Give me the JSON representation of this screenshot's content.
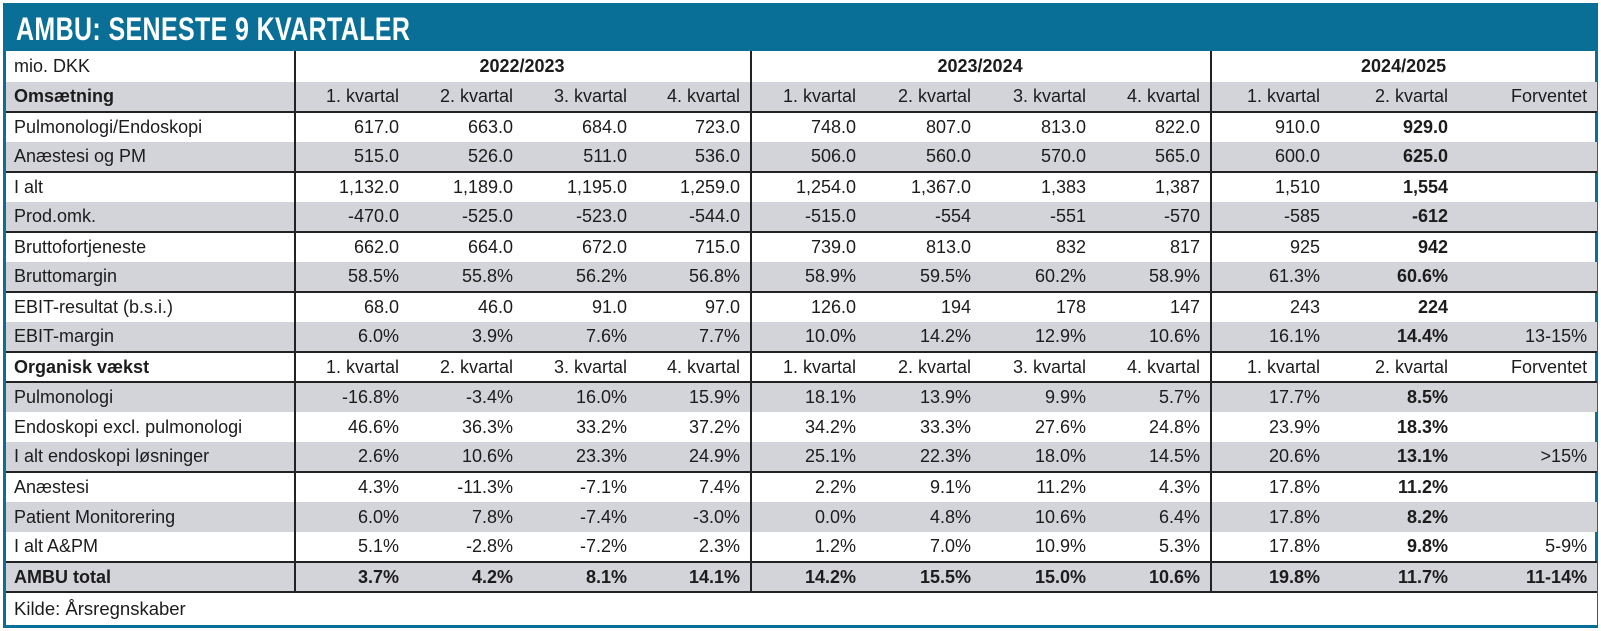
{
  "title": "AMBU: SENESTE 9 KVARTALER",
  "unit_label": "mio. DKK",
  "year_groups": [
    "2022/2023",
    "2023/2024",
    "2024/2025"
  ],
  "quarter_headers": [
    "1. kvartal",
    "2. kvartal",
    "3. kvartal",
    "4. kvartal",
    "1. kvartal",
    "2. kvartal",
    "3. kvartal",
    "4. kvartal",
    "1. kvartal",
    "2. kvartal",
    "Forventet"
  ],
  "sections": [
    {
      "name": "Omsætning",
      "rows": [
        {
          "label": "Pulmonologi/Endoskopi",
          "values": [
            "617.0",
            "663.0",
            "684.0",
            "723.0",
            "748.0",
            "807.0",
            "813.0",
            "822.0",
            "910.0",
            "929.0",
            ""
          ]
        },
        {
          "label": "Anæstesi og PM",
          "values": [
            "515.0",
            "526.0",
            "511.0",
            "536.0",
            "506.0",
            "560.0",
            "570.0",
            "565.0",
            "600.0",
            "625.0",
            ""
          ]
        },
        {
          "label": "I alt",
          "values": [
            "1,132.0",
            "1,189.0",
            "1,195.0",
            "1,259.0",
            "1,254.0",
            "1,367.0",
            "1,383",
            "1,387",
            "1,510",
            "1,554",
            ""
          ]
        },
        {
          "label": "Prod.omk.",
          "values": [
            "-470.0",
            "-525.0",
            "-523.0",
            "-544.0",
            "-515.0",
            "-554",
            "-551",
            "-570",
            "-585",
            "-612",
            ""
          ]
        },
        {
          "label": "Bruttofortjeneste",
          "values": [
            "662.0",
            "664.0",
            "672.0",
            "715.0",
            "739.0",
            "813.0",
            "832",
            "817",
            "925",
            "942",
            ""
          ]
        },
        {
          "label": "Bruttomargin",
          "values": [
            "58.5%",
            "55.8%",
            "56.2%",
            "56.8%",
            "58.9%",
            "59.5%",
            "60.2%",
            "58.9%",
            "61.3%",
            "60.6%",
            ""
          ]
        },
        {
          "label": "EBIT-resultat (b.s.i.)",
          "values": [
            "68.0",
            "46.0",
            "91.0",
            "97.0",
            "126.0",
            "194",
            "178",
            "147",
            "243",
            "224",
            ""
          ]
        },
        {
          "label": "EBIT-margin",
          "values": [
            "6.0%",
            "3.9%",
            "7.6%",
            "7.7%",
            "10.0%",
            "14.2%",
            "12.9%",
            "10.6%",
            "16.1%",
            "14.4%",
            "13-15%"
          ]
        }
      ]
    },
    {
      "name": "Organisk vækst",
      "rows": [
        {
          "label": "Pulmonologi",
          "values": [
            "-16.8%",
            "-3.4%",
            "16.0%",
            "15.9%",
            "18.1%",
            "13.9%",
            "9.9%",
            "5.7%",
            "17.7%",
            "8.5%",
            ""
          ]
        },
        {
          "label": "Endoskopi excl. pulmonologi",
          "values": [
            "46.6%",
            "36.3%",
            "33.2%",
            "37.2%",
            "34.2%",
            "33.3%",
            "27.6%",
            "24.8%",
            "23.9%",
            "18.3%",
            ""
          ]
        },
        {
          "label": "I alt endoskopi løsninger",
          "values": [
            "2.6%",
            "10.6%",
            "23.3%",
            "24.9%",
            "25.1%",
            "22.3%",
            "18.0%",
            "14.5%",
            "20.6%",
            "13.1%",
            ">15%"
          ]
        },
        {
          "label": "Anæstesi",
          "values": [
            "4.3%",
            "-11.3%",
            "-7.1%",
            "7.4%",
            "2.2%",
            "9.1%",
            "11.2%",
            "4.3%",
            "17.8%",
            "11.2%",
            ""
          ]
        },
        {
          "label": "Patient Monitorering",
          "values": [
            "6.0%",
            "7.8%",
            "-7.4%",
            "-3.0%",
            "0.0%",
            "4.8%",
            "10.6%",
            "6.4%",
            "17.8%",
            "8.2%",
            ""
          ]
        },
        {
          "label": "I alt A&PM",
          "values": [
            "5.1%",
            "-2.8%",
            "-7.2%",
            "2.3%",
            "1.2%",
            "7.0%",
            "10.9%",
            "5.3%",
            "17.8%",
            "9.8%",
            "5-9%"
          ]
        },
        {
          "label": "AMBU total",
          "values": [
            "3.7%",
            "4.2%",
            "8.1%",
            "14.1%",
            "14.2%",
            "15.5%",
            "15.0%",
            "10.6%",
            "19.8%",
            "11.7%",
            "11-14%"
          ]
        }
      ]
    }
  ],
  "source": "Kilde: Årsregnskaber",
  "colors": {
    "accent": "#0a6f96",
    "row_shade": "#d3d3da"
  }
}
